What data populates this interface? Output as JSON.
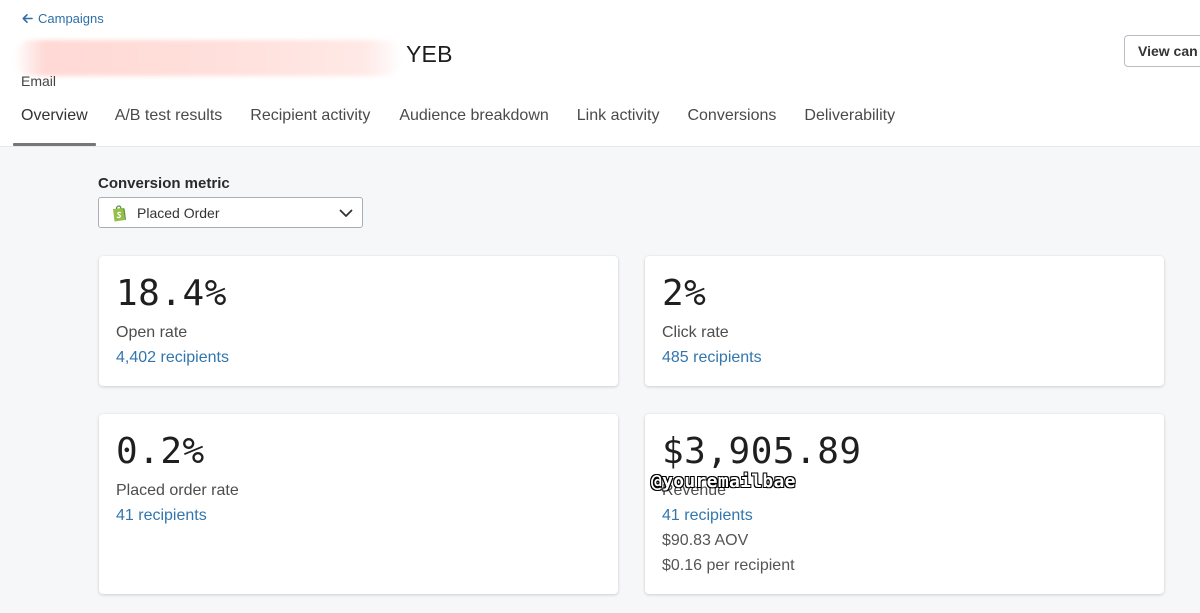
{
  "header": {
    "back_label": "Campaigns",
    "title_visible": "YEB",
    "subtitle": "Email",
    "view_button_label": "View can"
  },
  "tabs": [
    {
      "label": "Overview",
      "active": true
    },
    {
      "label": "A/B test results"
    },
    {
      "label": "Recipient activity"
    },
    {
      "label": "Audience breakdown"
    },
    {
      "label": "Link activity"
    },
    {
      "label": "Conversions"
    },
    {
      "label": "Deliverability"
    }
  ],
  "conversion": {
    "label": "Conversion metric",
    "selected": "Placed Order",
    "icon": "shopify-bag-icon"
  },
  "cards": {
    "open_rate": {
      "value": "18.4%",
      "label": "Open rate",
      "link": "4,402 recipients"
    },
    "click_rate": {
      "value": "2%",
      "label": "Click rate",
      "link": "485 recipients"
    },
    "placed_order_rate": {
      "value": "0.2%",
      "label": "Placed order rate",
      "link": "41 recipients"
    },
    "revenue": {
      "value": "$3,905.89",
      "label": "Revenue",
      "link": "41 recipients",
      "aov": "$90.83 AOV",
      "per_recipient": "$0.16 per recipient"
    }
  },
  "watermark": "@youremailbae",
  "colors": {
    "link": "#3276ad",
    "background": "#f6f7f9",
    "shopify_green": "#95bf47",
    "redaction": "#ffdcd8"
  }
}
